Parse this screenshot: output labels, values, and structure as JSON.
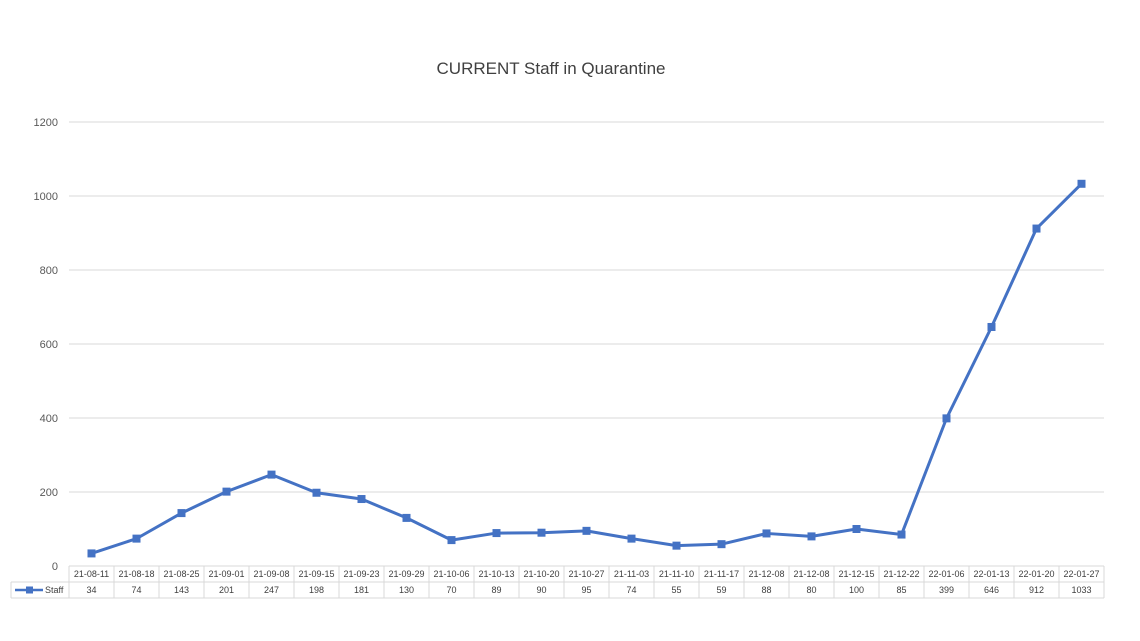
{
  "chart_data": {
    "type": "line",
    "title": "CURRENT Staff in Quarantine",
    "xlabel": "",
    "ylabel": "",
    "ylim": [
      0,
      1200
    ],
    "yticks": [
      0,
      200,
      400,
      600,
      800,
      1000,
      1200
    ],
    "grid": true,
    "legend_placement": "data-table-left",
    "categories": [
      "21-08-11",
      "21-08-18",
      "21-08-25",
      "21-09-01",
      "21-09-08",
      "21-09-15",
      "21-09-23",
      "21-09-29",
      "21-10-06",
      "21-10-13",
      "21-10-20",
      "21-10-27",
      "21-11-03",
      "21-11-10",
      "21-11-17",
      "21-12-08",
      "21-12-08",
      "21-12-15",
      "21-12-22",
      "22-01-06",
      "22-01-13",
      "22-01-20",
      "22-01-27"
    ],
    "series": [
      {
        "name": "Staff",
        "color": "#4472c4",
        "marker": "square",
        "values": [
          34,
          74,
          143,
          201,
          247,
          198,
          181,
          130,
          70,
          89,
          90,
          95,
          74,
          55,
          59,
          88,
          80,
          100,
          85,
          399,
          646,
          912,
          1033
        ]
      }
    ]
  }
}
